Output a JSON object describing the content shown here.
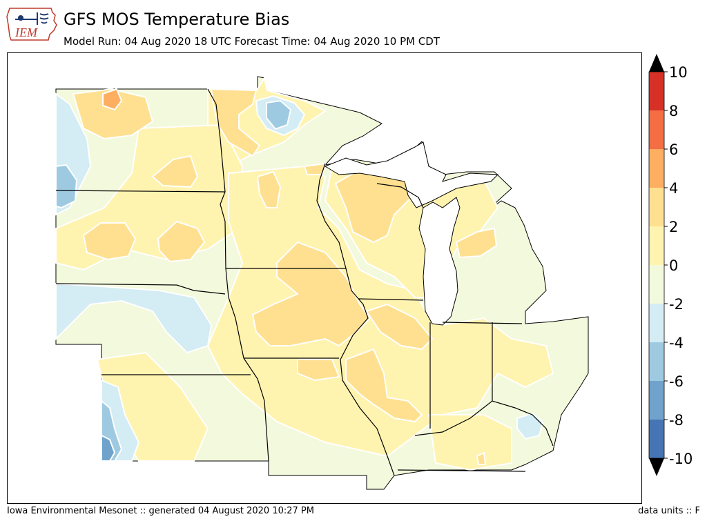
{
  "header": {
    "title": "GFS MOS Temperature Bias",
    "subtitle": "Model Run: 04 Aug 2020 18 UTC Forecast Time: 04 Aug 2020 10 PM CDT",
    "logo_text": "IEM",
    "logo_icon": "iowa-state-outline-weather-icon"
  },
  "footer": {
    "credit": "Iowa Environmental Mesonet :: generated 04 August 2020 10:27 PM",
    "units": "data units :: F"
  },
  "colorbar": {
    "tick_labels": [
      "10",
      "8",
      "6",
      "4",
      "2",
      "0",
      "-2",
      "-4",
      "-6",
      "-8",
      "-10"
    ],
    "bins": [
      {
        "range": "8 to 10",
        "color": "#d73027"
      },
      {
        "range": "6 to 8",
        "color": "#f46d43"
      },
      {
        "range": "4 to 6",
        "color": "#fdae61"
      },
      {
        "range": "2 to 4",
        "color": "#fee090"
      },
      {
        "range": "0 to 2",
        "color": "#fff3b0"
      },
      {
        "range": "-2 to 0",
        "color": "#f3f9dc"
      },
      {
        "range": "-4 to -2",
        "color": "#d4ecf4"
      },
      {
        "range": "-6 to -4",
        "color": "#9ecae1"
      },
      {
        "range": "-8 to -6",
        "color": "#6fa3cc"
      },
      {
        "range": "-10 to -8",
        "color": "#4575b4"
      }
    ],
    "over_color": "#000000",
    "under_color": "#000000"
  },
  "map": {
    "region": "Upper Midwest",
    "states": [
      "North Dakota",
      "South Dakota",
      "Nebraska",
      "Kansas",
      "Minnesota",
      "Iowa",
      "Missouri",
      "Wisconsin",
      "Illinois",
      "Michigan",
      "Indiana",
      "Ohio",
      "Kentucky"
    ],
    "background_bias_range": "-2 to 2"
  }
}
